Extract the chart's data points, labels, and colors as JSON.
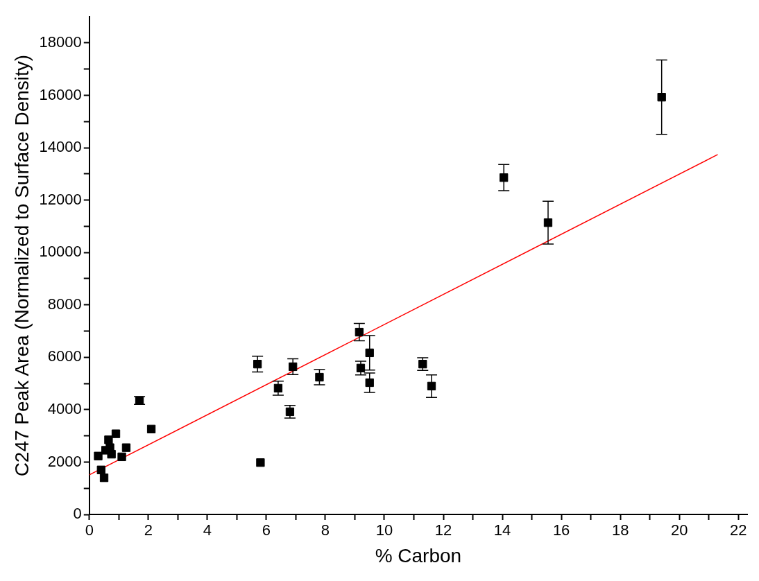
{
  "chart_data": {
    "type": "scatter",
    "xlabel": "% Carbon",
    "ylabel": "C247 Peak Area (Normalized to Surface Density)",
    "xlim": [
      0,
      22.3
    ],
    "ylim": [
      0,
      19000
    ],
    "xticks": [
      0,
      {
        "value": 1,
        "label": null
      },
      2,
      {
        "value": 3,
        "label": null
      },
      4,
      {
        "value": 5,
        "label": null
      },
      6,
      {
        "value": 7,
        "label": null
      },
      8,
      {
        "value": 9,
        "label": null
      },
      10,
      {
        "value": 11,
        "label": null
      },
      12,
      {
        "value": 13,
        "label": null
      },
      14,
      {
        "value": 15,
        "label": null
      },
      16,
      {
        "value": 17,
        "label": null
      },
      18,
      {
        "value": 19,
        "label": null
      },
      20,
      {
        "value": 21,
        "label": null
      },
      22
    ],
    "yticks": [
      0,
      {
        "value": 1000,
        "label": null
      },
      2000,
      {
        "value": 3000,
        "label": null
      },
      4000,
      {
        "value": 5000,
        "label": null
      },
      6000,
      {
        "value": 7000,
        "label": null
      },
      8000,
      {
        "value": 9000,
        "label": null
      },
      10000,
      {
        "value": 11000,
        "label": null
      },
      12000,
      {
        "value": 13000,
        "label": null
      },
      14000,
      {
        "value": 15000,
        "label": null
      },
      16000,
      {
        "value": 17000,
        "label": null
      },
      18000
    ],
    "grid": false,
    "legend": false,
    "series": [
      {
        "type": "scatter",
        "color": "#000000",
        "marker": "square",
        "x": [
          0.3,
          0.4,
          0.5,
          0.55,
          0.65,
          0.7,
          0.75,
          0.9,
          1.1,
          1.25,
          1.7,
          2.1,
          5.7,
          5.8,
          6.4,
          6.8,
          6.9,
          7.8,
          9.15,
          9.2,
          9.5,
          9.5,
          11.3,
          11.6,
          14.05,
          15.55,
          19.4
        ],
        "values": [
          2230,
          1700,
          1400,
          2450,
          2850,
          2550,
          2300,
          3080,
          2200,
          2550,
          4350,
          3260,
          5740,
          1980,
          4820,
          3920,
          5640,
          5240,
          6960,
          5590,
          6170,
          5030,
          5740,
          4900,
          12860,
          11140,
          15930
        ],
        "errors": [
          null,
          null,
          null,
          null,
          null,
          null,
          null,
          null,
          null,
          null,
          150,
          null,
          300,
          null,
          270,
          240,
          300,
          290,
          330,
          260,
          660,
          370,
          240,
          430,
          500,
          820,
          1420
        ]
      },
      {
        "type": "line",
        "color": "#ff0000",
        "marker": "none",
        "line_style": "solid",
        "x": [
          0,
          21.3
        ],
        "values": [
          1510,
          13740
        ]
      }
    ]
  }
}
